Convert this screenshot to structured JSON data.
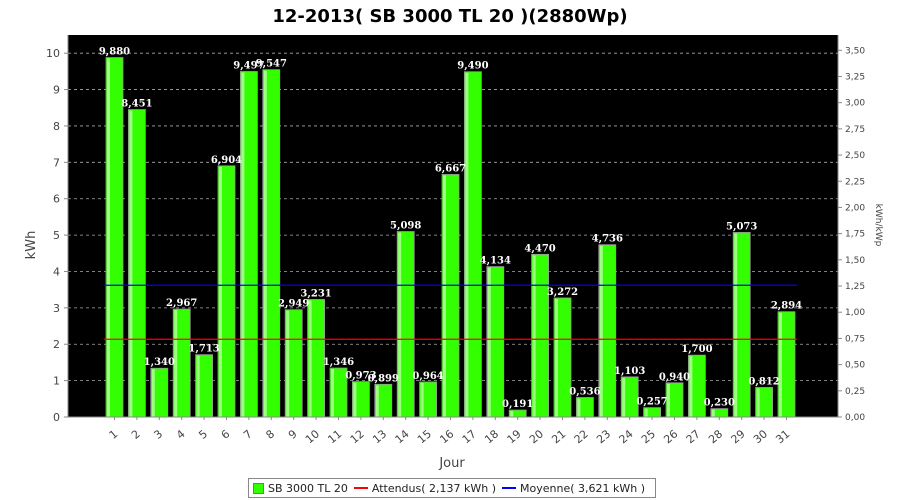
{
  "chart_data": {
    "type": "bar",
    "title": "12-2013( SB 3000 TL 20 )(2880Wp)",
    "xlabel": "Jour",
    "ylabel": "kWh",
    "y2label": "kWh/kWp",
    "ylim": [
      0,
      10.5
    ],
    "yticks": [
      "0",
      "1",
      "2",
      "3",
      "4",
      "5",
      "6",
      "7",
      "8",
      "9",
      "10"
    ],
    "y2ticks": [
      "0,00",
      "0,25",
      "0,50",
      "0,75",
      "1,00",
      "1,25",
      "1,50",
      "1,75",
      "2,00",
      "2,25",
      "2,50",
      "2,75",
      "3,00",
      "3,25",
      "3,50"
    ],
    "categories": [
      "1",
      "2",
      "3",
      "4",
      "5",
      "6",
      "7",
      "8",
      "9",
      "10",
      "11",
      "12",
      "13",
      "14",
      "15",
      "16",
      "17",
      "18",
      "19",
      "20",
      "21",
      "22",
      "23",
      "24",
      "25",
      "26",
      "27",
      "28",
      "29",
      "30",
      "31"
    ],
    "values": [
      9.88,
      8.451,
      1.34,
      2.967,
      1.713,
      6.904,
      9.497,
      9.547,
      2.949,
      3.231,
      1.346,
      0.973,
      0.899,
      5.098,
      0.964,
      6.667,
      9.49,
      4.134,
      0.191,
      4.47,
      3.272,
      0.536,
      4.736,
      1.103,
      0.257,
      0.94,
      1.7,
      0.23,
      5.073,
      0.812,
      2.894
    ],
    "data_labels": [
      "9,880",
      "8,451",
      "1,340",
      "2,967",
      "1,713",
      "6,904",
      "9,497",
      "9,547",
      "2,949",
      "3,231",
      "1,346",
      "0,973",
      "0,899",
      "5,098",
      "0,964",
      "6,667",
      "9,490",
      "4,134",
      "0,191",
      "4,470",
      "3,272",
      "0,536",
      "4,736",
      "1,103",
      "0,257",
      "0,940",
      "1,700",
      "0,230",
      "5,073",
      "0,812",
      "2,894"
    ],
    "reference_lines": [
      {
        "name": "Attendus",
        "value": 2.137,
        "color": "#ff0000"
      },
      {
        "name": "Moyenne",
        "value": 3.621,
        "color": "#0000ff"
      }
    ],
    "series_name": "SB 3000 TL 20",
    "bar_color": "#33ff00",
    "background": "#000000",
    "grid": true,
    "legend_position": "bottom"
  },
  "legend": {
    "bars": "SB 3000 TL 20",
    "expected": "Attendus( 2,137 kWh )",
    "average": "Moyenne( 3,621 kWh )"
  }
}
